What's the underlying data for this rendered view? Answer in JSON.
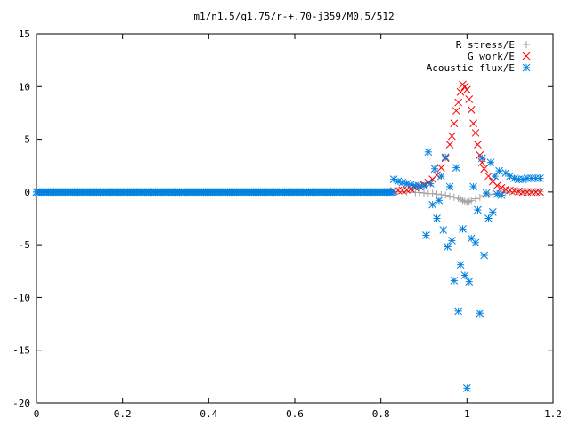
{
  "chart_data": {
    "type": "scatter",
    "title": "m1/n1.5/q1.75/r-+.70-j359/M0.5/512",
    "xlabel": "",
    "ylabel": "",
    "xlim": [
      0,
      1.2
    ],
    "ylim": [
      -20,
      15
    ],
    "xticks": [
      "0",
      "0.2",
      "0.4",
      "0.6",
      "0.8",
      "1",
      "1.2"
    ],
    "yticks": [
      "15",
      "10",
      "5",
      "0",
      "-5",
      "-10",
      "-15",
      "-20"
    ],
    "legend_position": "top-right",
    "grid": false,
    "series": [
      {
        "name": "R stress/E",
        "marker": "plus",
        "color": "#a0a0a0",
        "x": [
          0.84,
          0.85,
          0.86,
          0.87,
          0.88,
          0.89,
          0.9,
          0.91,
          0.92,
          0.93,
          0.94,
          0.95,
          0.96,
          0.97,
          0.98,
          0.985,
          0.99,
          0.995,
          1.0,
          1.005,
          1.01,
          1.02,
          1.03,
          1.04,
          1.05,
          1.06,
          1.07,
          1.08,
          1.09,
          1.1,
          1.11,
          1.12,
          1.13,
          1.14,
          1.15,
          1.16,
          1.17
        ],
        "y": [
          0.05,
          0.05,
          0.0,
          0.0,
          -0.05,
          -0.05,
          -0.1,
          -0.15,
          -0.15,
          -0.2,
          -0.25,
          -0.3,
          -0.4,
          -0.5,
          -0.6,
          -0.7,
          -0.8,
          -0.9,
          -1.0,
          -0.9,
          -0.8,
          -0.65,
          -0.5,
          -0.35,
          -0.25,
          -0.2,
          -0.15,
          -0.1,
          -0.05,
          0.0,
          0.05,
          0.05,
          0.05,
          0.05,
          0.05,
          0.05,
          0.05
        ]
      },
      {
        "name": "G work/E",
        "marker": "cross",
        "color": "#ff0000",
        "x": [
          0.83,
          0.84,
          0.85,
          0.86,
          0.87,
          0.88,
          0.89,
          0.9,
          0.91,
          0.92,
          0.93,
          0.94,
          0.95,
          0.96,
          0.965,
          0.97,
          0.975,
          0.98,
          0.985,
          0.99,
          0.995,
          1.0,
          1.005,
          1.01,
          1.015,
          1.02,
          1.025,
          1.03,
          1.035,
          1.04,
          1.05,
          1.06,
          1.07,
          1.08,
          1.09,
          1.1,
          1.11,
          1.12,
          1.13,
          1.14,
          1.15,
          1.16,
          1.17
        ],
        "y": [
          0.1,
          0.15,
          0.15,
          0.2,
          0.3,
          0.4,
          0.55,
          0.7,
          0.9,
          1.2,
          1.6,
          2.3,
          3.2,
          4.5,
          5.3,
          6.5,
          7.7,
          8.5,
          9.5,
          10.2,
          10.0,
          9.7,
          8.8,
          7.8,
          6.5,
          5.6,
          4.5,
          3.5,
          2.8,
          2.2,
          1.5,
          1.0,
          0.6,
          0.4,
          0.25,
          0.15,
          0.1,
          0.05,
          0.0,
          0.0,
          0.0,
          0.0,
          0.0
        ]
      },
      {
        "name": "Acoustic flux/E",
        "marker": "star",
        "color": "#0080e0",
        "x": [
          0.0,
          0.02,
          0.04,
          0.06,
          0.08,
          0.1,
          0.12,
          0.14,
          0.16,
          0.18,
          0.2,
          0.22,
          0.24,
          0.26,
          0.28,
          0.3,
          0.32,
          0.34,
          0.36,
          0.38,
          0.4,
          0.42,
          0.44,
          0.46,
          0.48,
          0.5,
          0.52,
          0.54,
          0.56,
          0.58,
          0.6,
          0.62,
          0.64,
          0.66,
          0.68,
          0.7,
          0.72,
          0.74,
          0.76,
          0.78,
          0.8,
          0.82,
          0.83,
          0.84,
          0.85,
          0.86,
          0.87,
          0.88,
          0.89,
          0.9,
          0.905,
          0.91,
          0.915,
          0.92,
          0.925,
          0.93,
          0.935,
          0.94,
          0.945,
          0.95,
          0.955,
          0.96,
          0.965,
          0.97,
          0.975,
          0.98,
          0.985,
          0.99,
          0.995,
          1.0,
          1.005,
          1.01,
          1.015,
          1.02,
          1.025,
          1.03,
          1.035,
          1.04,
          1.045,
          1.05,
          1.055,
          1.06,
          1.065,
          1.07,
          1.075,
          1.08,
          1.09,
          1.1,
          1.11,
          1.12,
          1.13,
          1.14,
          1.15,
          1.16,
          1.17
        ],
        "y": [
          0,
          0,
          0,
          0,
          0,
          0,
          0,
          0,
          0,
          0,
          0,
          0,
          0,
          0,
          0,
          0,
          0,
          0,
          0,
          0,
          0,
          0,
          0,
          0,
          0,
          0,
          0,
          0,
          0,
          0,
          0,
          0,
          0,
          0,
          0,
          0,
          0,
          0,
          0,
          0,
          0,
          0,
          1.2,
          1.0,
          0.9,
          0.8,
          0.7,
          0.6,
          0.5,
          0.6,
          -4.1,
          3.8,
          0.8,
          -1.2,
          2.2,
          -2.5,
          -0.8,
          1.5,
          -3.6,
          3.3,
          -5.2,
          0.5,
          -4.6,
          -8.4,
          2.3,
          -11.3,
          -6.9,
          -3.5,
          -7.9,
          -18.6,
          -8.5,
          -4.4,
          0.5,
          -4.8,
          -1.7,
          -11.5,
          3.2,
          -6.0,
          -0.1,
          -2.5,
          2.8,
          -1.9,
          1.5,
          -0.2,
          2.0,
          -0.3,
          1.8,
          1.5,
          1.3,
          1.2,
          1.2,
          1.3,
          1.3,
          1.3,
          1.3
        ]
      }
    ]
  }
}
